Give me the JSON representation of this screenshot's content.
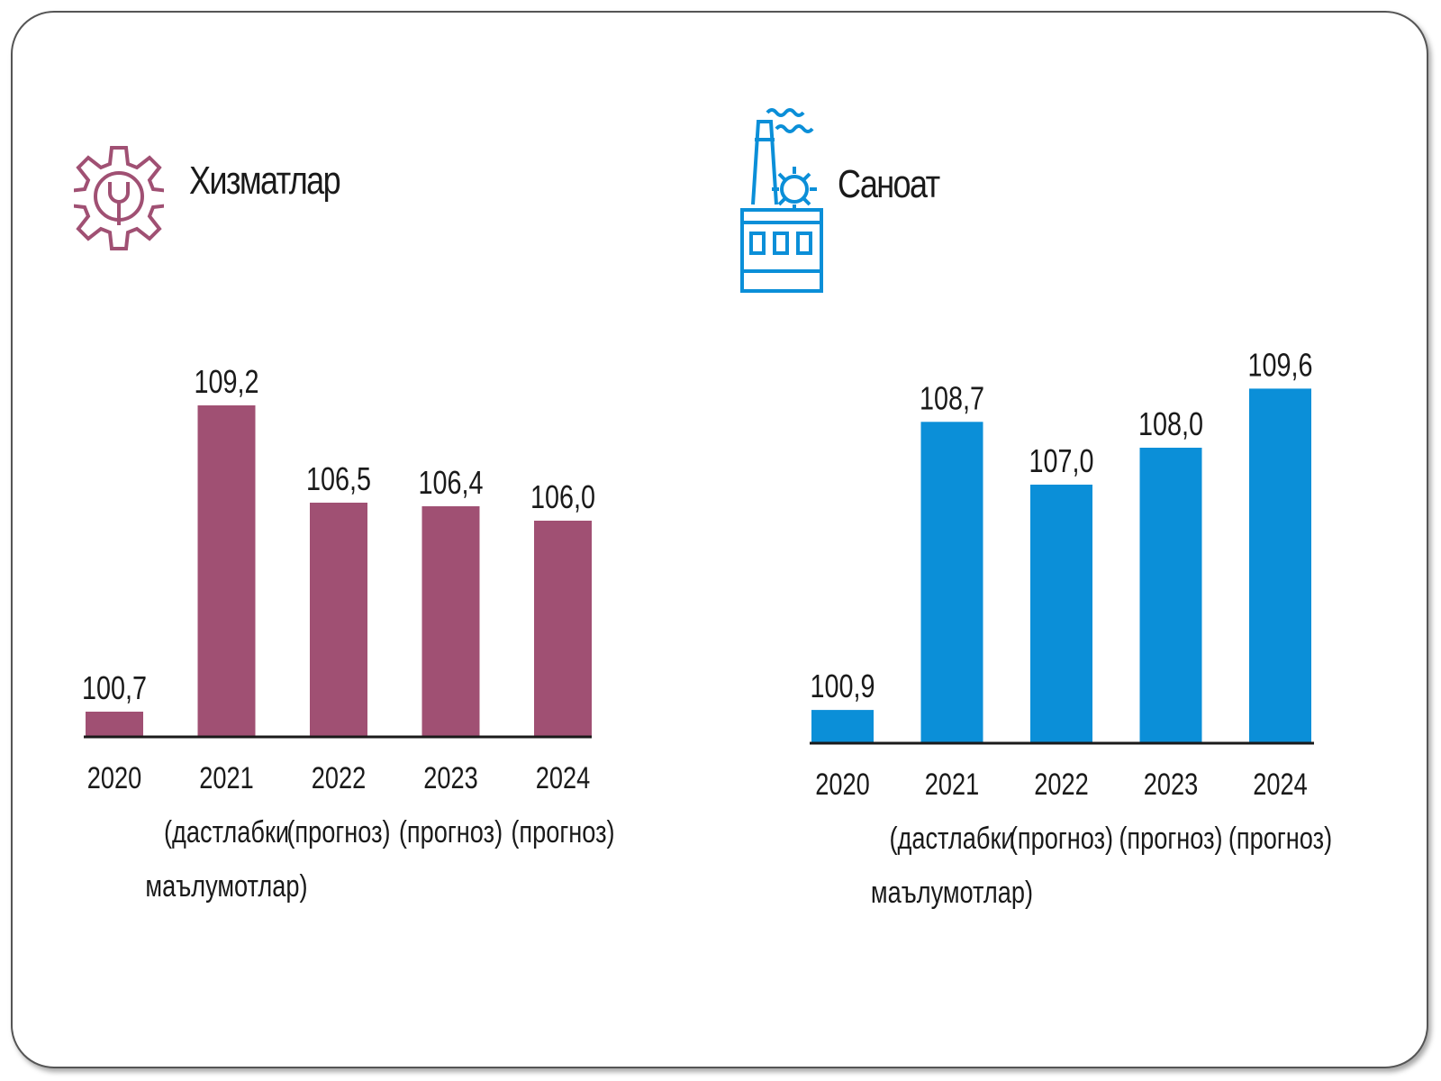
{
  "colors": {
    "services": "#a05073",
    "industry": "#0b8fd8",
    "frame": "#555555"
  },
  "panels": [
    {
      "title": "Хизматлар",
      "icon": "gear-wrench-icon",
      "chart_data": {
        "type": "bar",
        "categories": [
          [
            "2020"
          ],
          [
            "2021",
            "(дастлабки",
            "маълумотлар)"
          ],
          [
            "2022",
            "(прогноз)"
          ],
          [
            "2023",
            "(прогноз)"
          ],
          [
            "2024",
            "(прогноз)"
          ]
        ],
        "values": [
          100.7,
          109.2,
          106.5,
          106.4,
          106.0
        ],
        "value_labels": [
          "100,7",
          "109,2",
          "106,5",
          "106,4",
          "106,0"
        ],
        "ylim": [
          100,
          111
        ],
        "grid": false,
        "color": "#a05073"
      }
    },
    {
      "title": "Саноат",
      "icon": "factory-icon",
      "chart_data": {
        "type": "bar",
        "categories": [
          [
            "2020"
          ],
          [
            "2021",
            "(дастлабки",
            "маълумотлар)"
          ],
          [
            "2022",
            "(прогноз)"
          ],
          [
            "2023",
            "(прогноз)"
          ],
          [
            "2024",
            "(прогноз)"
          ]
        ],
        "values": [
          100.9,
          108.7,
          107.0,
          108.0,
          109.6
        ],
        "value_labels": [
          "100,9",
          "108,7",
          "107,0",
          "108,0",
          "109,6"
        ],
        "ylim": [
          100,
          111
        ],
        "grid": false,
        "color": "#0b8fd8"
      }
    }
  ]
}
